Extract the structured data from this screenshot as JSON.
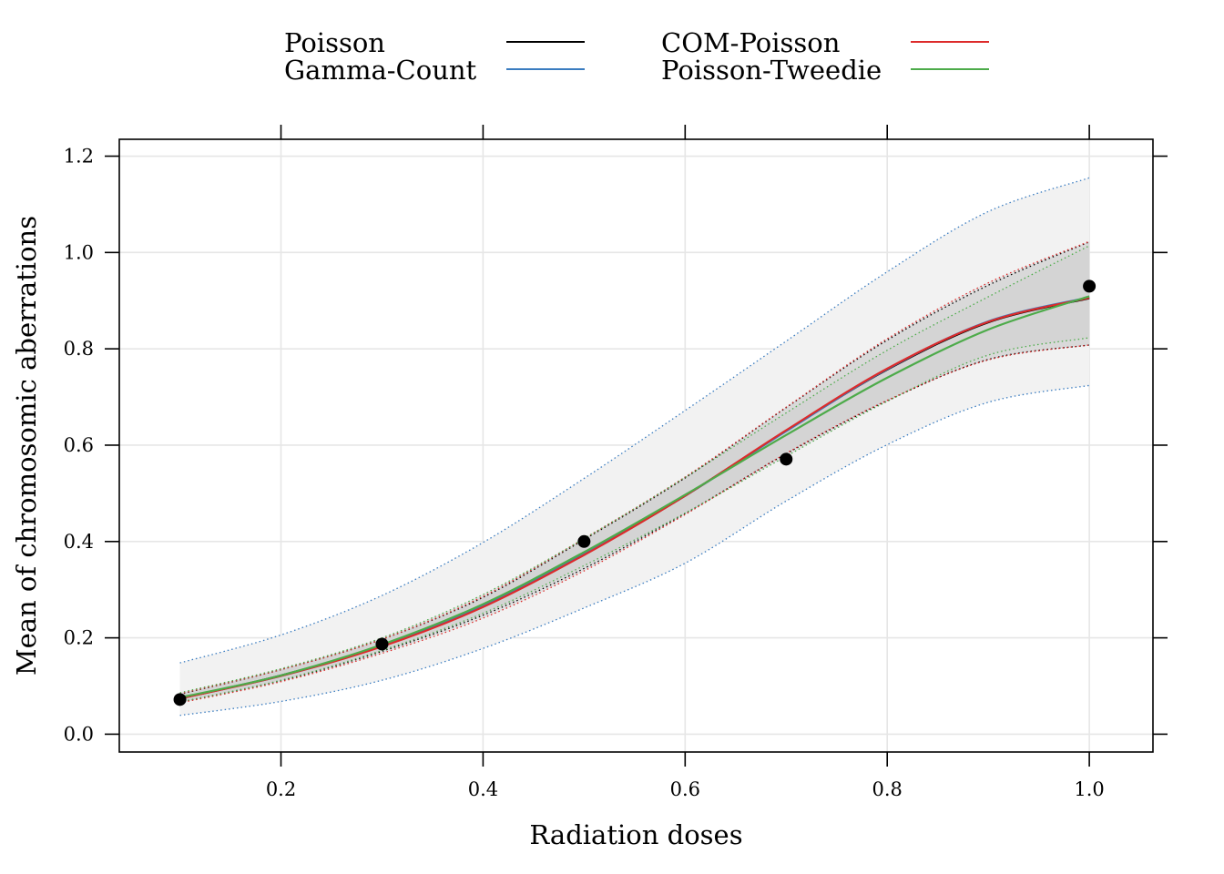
{
  "chart_data": {
    "type": "line",
    "xlabel": "Radiation doses",
    "ylabel": "Mean of chromosomic aberrations",
    "xlim": [
      0.04,
      1.063
    ],
    "ylim": [
      -0.037,
      1.235
    ],
    "xticks": [
      {
        "value": 0.2,
        "label": "0.2"
      },
      {
        "value": 0.4,
        "label": "0.4"
      },
      {
        "value": 0.6,
        "label": "0.6"
      },
      {
        "value": 0.8,
        "label": "0.8"
      },
      {
        "value": 1.0,
        "label": "1.0"
      }
    ],
    "yticks": [
      {
        "value": 0.0,
        "label": "0.0"
      },
      {
        "value": 0.2,
        "label": "0.2"
      },
      {
        "value": 0.4,
        "label": "0.4"
      },
      {
        "value": 0.6,
        "label": "0.6"
      },
      {
        "value": 0.8,
        "label": "0.8"
      },
      {
        "value": 1.0,
        "label": "1.0"
      },
      {
        "value": 1.2,
        "label": "1.2"
      }
    ],
    "grid": true,
    "legend_position": "top",
    "observed": {
      "x": [
        0.1,
        0.3,
        0.5,
        0.7,
        1.0
      ],
      "y": [
        0.072,
        0.187,
        0.4,
        0.571,
        0.93
      ]
    },
    "x": [
      0.1,
      0.2,
      0.3,
      0.4,
      0.5,
      0.6,
      0.7,
      0.8,
      0.9,
      1.0
    ],
    "series": [
      {
        "name": "Poisson",
        "color": "#000000",
        "values": [
          0.074,
          0.122,
          0.183,
          0.265,
          0.373,
          0.495,
          0.63,
          0.757,
          0.855,
          0.905
        ],
        "lower": [
          0.066,
          0.111,
          0.172,
          0.247,
          0.344,
          0.458,
          0.582,
          0.692,
          0.778,
          0.808
        ],
        "upper": [
          0.083,
          0.134,
          0.197,
          0.284,
          0.404,
          0.532,
          0.678,
          0.818,
          0.932,
          1.022
        ]
      },
      {
        "name": "Gamma-Count",
        "color": "#3A7CC0",
        "values": [
          0.075,
          0.121,
          0.183,
          0.266,
          0.374,
          0.495,
          0.629,
          0.758,
          0.857,
          0.907
        ],
        "lower": [
          0.039,
          0.068,
          0.112,
          0.178,
          0.262,
          0.355,
          0.484,
          0.601,
          0.689,
          0.724
        ],
        "upper": [
          0.148,
          0.206,
          0.288,
          0.398,
          0.531,
          0.672,
          0.816,
          0.96,
          1.085,
          1.155
        ]
      },
      {
        "name": "COM-Poisson",
        "color": "#DD2B2B",
        "values": [
          0.074,
          0.121,
          0.182,
          0.264,
          0.372,
          0.495,
          0.631,
          0.759,
          0.856,
          0.906
        ],
        "lower": [
          0.065,
          0.109,
          0.168,
          0.241,
          0.339,
          0.456,
          0.583,
          0.693,
          0.777,
          0.808
        ],
        "upper": [
          0.084,
          0.134,
          0.197,
          0.286,
          0.406,
          0.534,
          0.679,
          0.821,
          0.937,
          1.023
        ]
      },
      {
        "name": "Poisson-Tweedie",
        "color": "#4DAB4A",
        "values": [
          0.076,
          0.122,
          0.186,
          0.27,
          0.378,
          0.497,
          0.621,
          0.74,
          0.84,
          0.909
        ],
        "lower": [
          0.067,
          0.112,
          0.174,
          0.251,
          0.35,
          0.459,
          0.577,
          0.691,
          0.787,
          0.823
        ],
        "upper": [
          0.086,
          0.136,
          0.2,
          0.29,
          0.406,
          0.533,
          0.667,
          0.797,
          0.908,
          1.014
        ]
      }
    ]
  }
}
